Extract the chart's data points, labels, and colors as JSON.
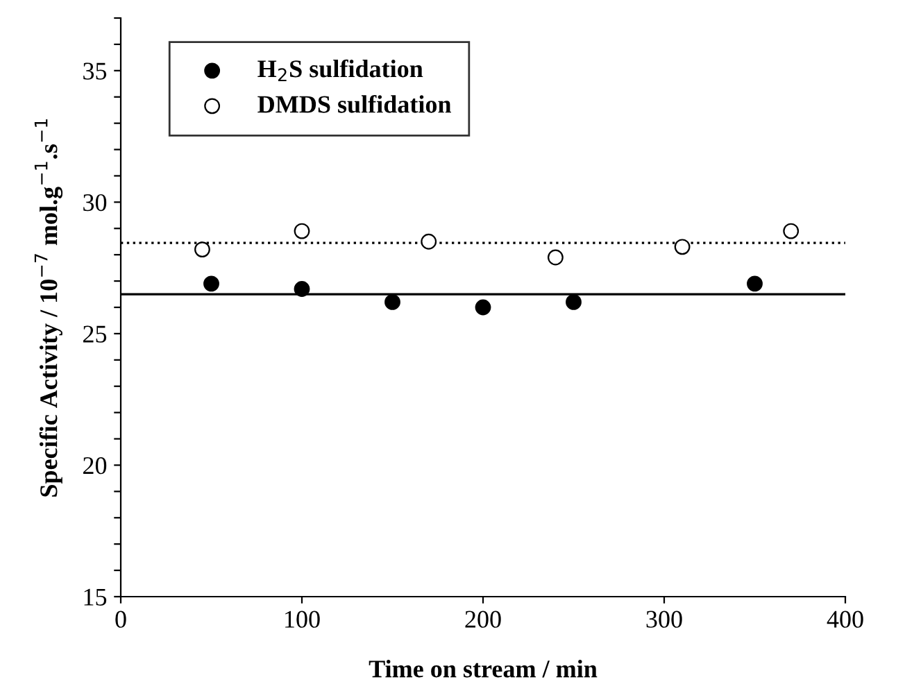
{
  "chart_data": {
    "type": "scatter",
    "xlabel": "Time on stream / min",
    "ylabel": "Specific Activity / 10$^{−7}$ mol.g$^{−1}$.s$^{−1}$",
    "xlim": [
      0,
      400
    ],
    "xticks": [
      0,
      100,
      200,
      300,
      400
    ],
    "ylim": [
      15,
      37
    ],
    "yticks": [
      15,
      {
        "value": 16,
        "label": null
      },
      {
        "value": 17,
        "label": null
      },
      {
        "value": 18,
        "label": null
      },
      {
        "value": 19,
        "label": null
      },
      20,
      {
        "value": 21,
        "label": null
      },
      {
        "value": 22,
        "label": null
      },
      {
        "value": 23,
        "label": null
      },
      {
        "value": 24,
        "label": null
      },
      25,
      {
        "value": 26,
        "label": null
      },
      {
        "value": 27,
        "label": null
      },
      {
        "value": 28,
        "label": null
      },
      {
        "value": 29,
        "label": null
      },
      30,
      {
        "value": 31,
        "label": null
      },
      {
        "value": 32,
        "label": null
      },
      {
        "value": 33,
        "label": null
      },
      {
        "value": 34,
        "label": null
      },
      35,
      {
        "value": 36,
        "label": null
      },
      {
        "value": 37,
        "label": null
      }
    ],
    "grid": false,
    "legend": "top left",
    "marker": "circle",
    "series": [
      {
        "name": "H$_{2}$S sulfidation",
        "color": "#000000",
        "x": [
          50,
          100,
          150,
          200,
          250,
          350
        ],
        "values": [
          26.9,
          26.7,
          26.2,
          26.0,
          26.2,
          26.9
        ]
      },
      {
        "name": "DMDS sulfidation",
        "color": "#ffffff",
        "x": [
          45,
          100,
          170,
          240,
          310,
          370
        ],
        "values": [
          28.2,
          28.9,
          28.5,
          27.9,
          28.3,
          28.9
        ]
      }
    ],
    "ref_lines": [
      {
        "axis": "y",
        "value": 26.5,
        "label": null,
        "color": "#000000",
        "line_style": "solid"
      },
      {
        "axis": "y",
        "value": 28.45,
        "label": null,
        "color": "#000000",
        "line_style": "dotted"
      }
    ]
  }
}
